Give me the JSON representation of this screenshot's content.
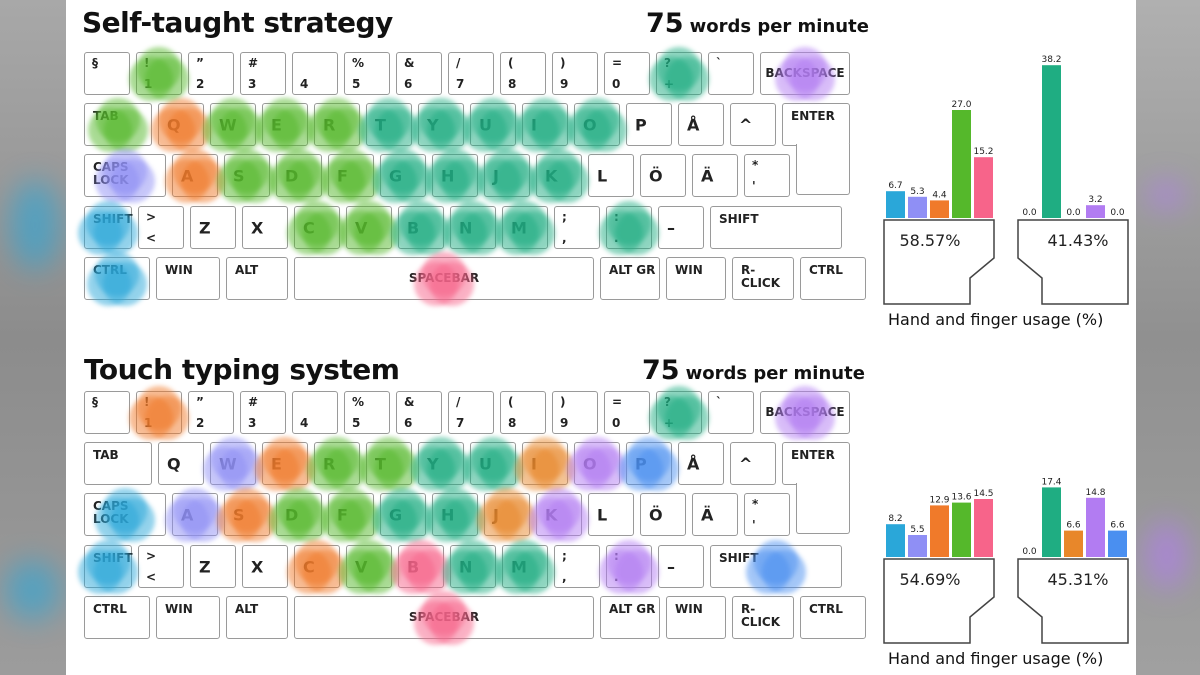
{
  "legend_colors": {
    "left_pinky": "#2aa7d9",
    "left_ring": "#8f8ff5",
    "left_middle": "#f07a2a",
    "left_index": "#55b82b",
    "thumb": "#f7648a",
    "right_index": "#1fad82",
    "right_middle": "#e8872a",
    "right_ring": "#b27cf2",
    "right_pinky": "#4a8ff0"
  },
  "keyboard": {
    "rows": [
      [
        {
          "t": "§"
        },
        {
          "t": "!",
          "b": "1"
        },
        {
          "t": "”",
          "b": "2"
        },
        {
          "t": "#",
          "b": "3"
        },
        {
          "b": "4"
        },
        {
          "t": "%",
          "b": "5"
        },
        {
          "t": "&",
          "b": "6"
        },
        {
          "t": "/",
          "b": "7"
        },
        {
          "t": "(",
          "b": "8"
        },
        {
          "t": ")",
          "b": "9"
        },
        {
          "t": "=",
          "b": "0"
        },
        {
          "t": "?",
          "b": "+"
        },
        {
          "t": "`"
        },
        {
          "w": "BACKSPACE"
        }
      ],
      [
        {
          "w": "TAB"
        },
        {
          "c": "Q"
        },
        {
          "c": "W"
        },
        {
          "c": "E"
        },
        {
          "c": "R"
        },
        {
          "c": "T"
        },
        {
          "c": "Y"
        },
        {
          "c": "U"
        },
        {
          "c": "I"
        },
        {
          "c": "O"
        },
        {
          "c": "P"
        },
        {
          "c": "Å"
        },
        {
          "c": "^"
        },
        {
          "w": "ENTER"
        }
      ],
      [
        {
          "w": "CAPS LOCK"
        },
        {
          "c": "A"
        },
        {
          "c": "S"
        },
        {
          "c": "D"
        },
        {
          "c": "F"
        },
        {
          "c": "G"
        },
        {
          "c": "H"
        },
        {
          "c": "J"
        },
        {
          "c": "K"
        },
        {
          "c": "L"
        },
        {
          "c": "Ö"
        },
        {
          "c": "Ä"
        },
        {
          "t": "*",
          "b": "'"
        }
      ],
      [
        {
          "w": "SHIFT"
        },
        {
          "t": ">",
          "b": "<"
        },
        {
          "c": "Z"
        },
        {
          "c": "X"
        },
        {
          "c": "C"
        },
        {
          "c": "V"
        },
        {
          "c": "B"
        },
        {
          "c": "N"
        },
        {
          "c": "M"
        },
        {
          "t": ";",
          "b": ","
        },
        {
          "t": ":",
          "b": "."
        },
        {
          "c": "–"
        },
        {
          "w": "SHIFT"
        }
      ],
      [
        {
          "w": "CTRL"
        },
        {
          "w": "WIN"
        },
        {
          "w": "ALT"
        },
        {
          "w": "SPACEBAR"
        },
        {
          "w": "ALT GR"
        },
        {
          "w": "WIN"
        },
        {
          "w": "R-CLICK"
        },
        {
          "w": "CTRL"
        }
      ]
    ]
  },
  "sections": [
    {
      "title": "Self-taught strategy",
      "wpm_number": "75",
      "wpm_unit": "words per minute",
      "left_hand_pct": "58.57%",
      "right_hand_pct": "41.43%",
      "caption": "Hand and finger usage (%)",
      "heat": [
        {
          "k": "1.0",
          "col": "left_index"
        },
        {
          "k": "1.1",
          "col": "left_middle"
        },
        {
          "k": "1.2",
          "col": "left_index"
        },
        {
          "k": "1.3",
          "col": "left_index"
        },
        {
          "k": "1.4",
          "col": "left_index"
        },
        {
          "k": "1.5",
          "col": "right_index"
        },
        {
          "k": "1.6",
          "col": "right_index"
        },
        {
          "k": "1.7",
          "col": "right_index"
        },
        {
          "k": "1.8",
          "col": "right_index"
        },
        {
          "k": "1.9",
          "col": "right_index"
        },
        {
          "k": "2.0",
          "col": "left_ring"
        },
        {
          "k": "2.1",
          "col": "left_middle"
        },
        {
          "k": "2.2",
          "col": "left_index"
        },
        {
          "k": "2.3",
          "col": "left_index"
        },
        {
          "k": "2.4",
          "col": "left_index"
        },
        {
          "k": "2.5",
          "col": "right_index"
        },
        {
          "k": "2.6",
          "col": "right_index"
        },
        {
          "k": "2.7",
          "col": "right_index"
        },
        {
          "k": "2.8",
          "col": "right_index"
        },
        {
          "k": "3.0",
          "col": "left_pinky"
        },
        {
          "k": "3.4",
          "col": "left_index"
        },
        {
          "k": "3.5",
          "col": "left_index"
        },
        {
          "k": "3.6",
          "col": "right_index"
        },
        {
          "k": "3.7",
          "col": "right_index"
        },
        {
          "k": "3.8",
          "col": "right_index"
        },
        {
          "k": "3.10",
          "col": "right_index"
        },
        {
          "k": "4.0",
          "col": "left_pinky"
        },
        {
          "k": "4.3",
          "col": "thumb"
        },
        {
          "k": "0.11",
          "col": "right_index"
        },
        {
          "k": "0.13",
          "col": "right_ring"
        },
        {
          "k": "0.1",
          "col": "left_index"
        }
      ],
      "left_hand_values": [
        "6.7",
        "5.3",
        "4.4",
        "27.0",
        "15.2"
      ],
      "right_hand_values": [
        "0.0",
        "38.2",
        "0.0",
        "3.2",
        "0.0"
      ]
    },
    {
      "title": "Touch typing system",
      "wpm_number": "75",
      "wpm_unit": "words per minute",
      "left_hand_pct": "54.69%",
      "right_hand_pct": "45.31%",
      "caption": "Hand and finger usage (%)",
      "heat": [
        {
          "k": "0.1",
          "col": "left_middle"
        },
        {
          "k": "0.11",
          "col": "right_index"
        },
        {
          "k": "0.13",
          "col": "right_ring"
        },
        {
          "k": "1.2",
          "col": "left_ring"
        },
        {
          "k": "1.3",
          "col": "left_middle"
        },
        {
          "k": "1.4",
          "col": "left_index"
        },
        {
          "k": "1.5",
          "col": "left_index"
        },
        {
          "k": "1.6",
          "col": "right_index"
        },
        {
          "k": "1.7",
          "col": "right_index"
        },
        {
          "k": "1.8",
          "col": "right_middle"
        },
        {
          "k": "1.9",
          "col": "right_ring"
        },
        {
          "k": "1.10",
          "col": "right_pinky"
        },
        {
          "k": "2.0",
          "col": "left_pinky"
        },
        {
          "k": "2.1",
          "col": "left_ring"
        },
        {
          "k": "2.2",
          "col": "left_middle"
        },
        {
          "k": "2.3",
          "col": "left_index"
        },
        {
          "k": "2.4",
          "col": "left_index"
        },
        {
          "k": "2.5",
          "col": "right_index"
        },
        {
          "k": "2.6",
          "col": "right_index"
        },
        {
          "k": "2.7",
          "col": "right_middle"
        },
        {
          "k": "2.8",
          "col": "right_ring"
        },
        {
          "k": "3.0",
          "col": "left_pinky"
        },
        {
          "k": "3.4",
          "col": "left_middle"
        },
        {
          "k": "3.5",
          "col": "left_index"
        },
        {
          "k": "3.6",
          "col": "thumb"
        },
        {
          "k": "3.7",
          "col": "right_index"
        },
        {
          "k": "3.8",
          "col": "right_index"
        },
        {
          "k": "3.10",
          "col": "right_ring"
        },
        {
          "k": "3.12",
          "col": "right_pinky"
        },
        {
          "k": "4.3",
          "col": "thumb"
        }
      ],
      "left_hand_values": [
        "8.2",
        "5.5",
        "12.9",
        "13.6",
        "14.5"
      ],
      "right_hand_values": [
        "0.0",
        "17.4",
        "6.6",
        "14.8",
        "6.6"
      ]
    }
  ],
  "chart_data": [
    {
      "type": "bar",
      "title": "Self-taught strategy — Hand and finger usage (%)",
      "groups": [
        {
          "hand": "left",
          "total_pct": 58.57,
          "categories": [
            "pinky",
            "ring",
            "middle",
            "index",
            "thumb"
          ],
          "colors": [
            "#2aa7d9",
            "#8f8ff5",
            "#f07a2a",
            "#55b82b",
            "#f7648a"
          ],
          "values": [
            6.7,
            5.3,
            4.4,
            27.0,
            15.2
          ]
        },
        {
          "hand": "right",
          "total_pct": 41.43,
          "categories": [
            "thumb",
            "index",
            "middle",
            "ring",
            "pinky"
          ],
          "colors": [
            "#f7648a",
            "#1fad82",
            "#e8872a",
            "#b27cf2",
            "#4a8ff0"
          ],
          "values": [
            0.0,
            38.2,
            0.0,
            3.2,
            0.0
          ]
        }
      ],
      "ylim": [
        0,
        40
      ]
    },
    {
      "type": "bar",
      "title": "Touch typing system — Hand and finger usage (%)",
      "groups": [
        {
          "hand": "left",
          "total_pct": 54.69,
          "categories": [
            "pinky",
            "ring",
            "middle",
            "index",
            "thumb"
          ],
          "colors": [
            "#2aa7d9",
            "#8f8ff5",
            "#f07a2a",
            "#55b82b",
            "#f7648a"
          ],
          "values": [
            8.2,
            5.5,
            12.9,
            13.6,
            14.5
          ]
        },
        {
          "hand": "right",
          "total_pct": 45.31,
          "categories": [
            "thumb",
            "index",
            "middle",
            "ring",
            "pinky"
          ],
          "colors": [
            "#f7648a",
            "#1fad82",
            "#e8872a",
            "#b27cf2",
            "#4a8ff0"
          ],
          "values": [
            0.0,
            17.4,
            6.6,
            14.8,
            6.6
          ]
        }
      ],
      "ylim": [
        0,
        40
      ]
    }
  ]
}
